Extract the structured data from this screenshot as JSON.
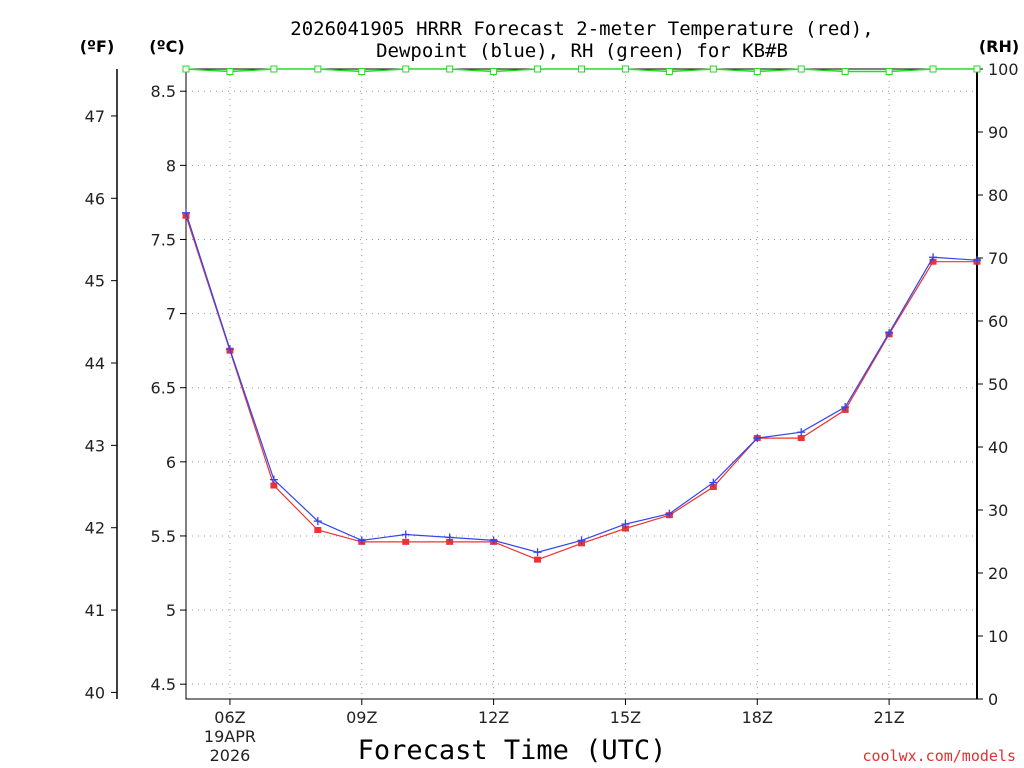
{
  "chart_data": {
    "type": "line",
    "title_line1": "2026041905 HRRR Forecast 2-meter Temperature (red),",
    "title_line2": "Dewpoint (blue), RH (green) for KB#B",
    "xlabel": "Forecast Time (UTC)",
    "credit": "coolwx.com/models",
    "unit_f": "(ºF)",
    "unit_c": "(ºC)",
    "unit_rh": "(RH)",
    "x_hours": [
      5,
      6,
      7,
      8,
      9,
      10,
      11,
      12,
      13,
      14,
      15,
      16,
      17,
      18,
      19,
      20,
      21,
      22,
      23
    ],
    "x_ticks": [
      {
        "hour": 6,
        "label": "06Z",
        "sub1": "19APR",
        "sub2": "2026"
      },
      {
        "hour": 9,
        "label": "09Z"
      },
      {
        "hour": 12,
        "label": "12Z"
      },
      {
        "hour": 15,
        "label": "15Z"
      },
      {
        "hour": 18,
        "label": "18Z"
      },
      {
        "hour": 21,
        "label": "21Z"
      }
    ],
    "xlim": [
      5,
      23
    ],
    "ylim_c": [
      4.4,
      8.65
    ],
    "y_ticks_c": [
      4.5,
      5,
      5.5,
      6,
      6.5,
      7,
      7.5,
      8,
      8.5
    ],
    "y_tick_labels_c": [
      "4.5",
      "5",
      "5.5",
      "6",
      "6.5",
      "7",
      "7.5",
      "8",
      "8.5"
    ],
    "y_ticks_f": [
      40,
      41,
      42,
      43,
      44,
      45,
      46,
      47
    ],
    "y_tick_labels_f": [
      "40",
      "41",
      "42",
      "43",
      "44",
      "45",
      "46",
      "47"
    ],
    "ylim_rh": [
      0,
      100
    ],
    "y_ticks_rh": [
      0,
      10,
      20,
      30,
      40,
      50,
      60,
      70,
      80,
      90,
      100
    ],
    "y_tick_labels_rh": [
      "0",
      "10",
      "20",
      "30",
      "40",
      "50",
      "60",
      "70",
      "80",
      "90",
      "100"
    ],
    "series": [
      {
        "name": "Temperature",
        "color": "#ee3333",
        "marker": "square",
        "values": [
          7.66,
          6.75,
          5.84,
          5.54,
          5.46,
          5.46,
          5.46,
          5.46,
          5.34,
          5.45,
          5.55,
          5.64,
          5.83,
          6.16,
          6.16,
          6.35,
          6.86,
          7.35,
          7.35
        ]
      },
      {
        "name": "Dewpoint",
        "color": "#3344ee",
        "marker": "plus",
        "values": [
          7.68,
          6.76,
          5.88,
          5.6,
          5.47,
          5.51,
          5.49,
          5.47,
          5.39,
          5.47,
          5.58,
          5.65,
          5.86,
          6.16,
          6.2,
          6.37,
          6.87,
          7.38,
          7.36
        ]
      },
      {
        "name": "RH",
        "color": "#22dd22",
        "marker": "open-square",
        "values": [
          100,
          99.6,
          100,
          100,
          99.6,
          100,
          100,
          99.6,
          100,
          100,
          100,
          99.6,
          100,
          99.6,
          100,
          99.6,
          99.6,
          100,
          100
        ]
      }
    ]
  }
}
